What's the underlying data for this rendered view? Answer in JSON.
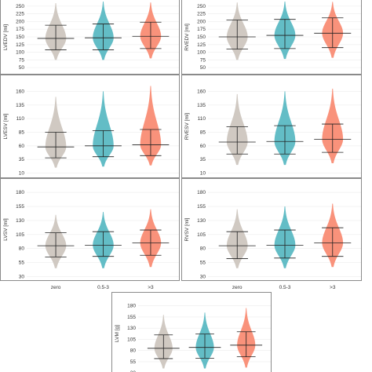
{
  "chart_data": [
    {
      "type": "violin",
      "ylabel": "LVEDV [ml]",
      "yticks": [
        50,
        75,
        100,
        125,
        150,
        175,
        200,
        225,
        250
      ],
      "ylim": [
        35,
        265
      ],
      "categories": [
        "zero",
        "0.5-3",
        ">3"
      ],
      "colors": [
        "#cdc6bf",
        "#5bb9c3",
        "#f98c74"
      ],
      "groups": [
        {
          "category": "zero",
          "median": 145,
          "q1": 108,
          "q3": 188,
          "min": 75,
          "max": 260
        },
        {
          "category": "0.5-3",
          "median": 147,
          "q1": 108,
          "q3": 192,
          "min": 75,
          "max": 265
        },
        {
          "category": ">3",
          "median": 152,
          "q1": 112,
          "q3": 198,
          "min": 80,
          "max": 262
        }
      ],
      "show_xticks": false
    },
    {
      "type": "violin",
      "ylabel": "RVEDV [ml]",
      "yticks": [
        50,
        75,
        100,
        125,
        150,
        175,
        200,
        225,
        250
      ],
      "ylim": [
        35,
        265
      ],
      "categories": [
        "zero",
        "0.5-3",
        ">3"
      ],
      "colors": [
        "#cdc6bf",
        "#5bb9c3",
        "#f98c74"
      ],
      "groups": [
        {
          "category": "zero",
          "median": 150,
          "q1": 110,
          "q3": 205,
          "min": 75,
          "max": 262
        },
        {
          "category": "0.5-3",
          "median": 155,
          "q1": 112,
          "q3": 207,
          "min": 78,
          "max": 265
        },
        {
          "category": ">3",
          "median": 162,
          "q1": 115,
          "q3": 212,
          "min": 82,
          "max": 264
        }
      ],
      "show_xticks": false
    },
    {
      "type": "violin",
      "ylabel": "LVESV [ml]",
      "yticks": [
        10,
        35,
        60,
        85,
        110,
        135,
        160
      ],
      "ylim": [
        5,
        175
      ],
      "categories": [
        "zero",
        "0.5-3",
        ">3"
      ],
      "colors": [
        "#cdc6bf",
        "#5bb9c3",
        "#f98c74"
      ],
      "groups": [
        {
          "category": "zero",
          "median": 58,
          "q1": 38,
          "q3": 85,
          "min": 20,
          "max": 150
        },
        {
          "category": "0.5-3",
          "median": 60,
          "q1": 40,
          "q3": 88,
          "min": 22,
          "max": 160
        },
        {
          "category": ">3",
          "median": 62,
          "q1": 42,
          "q3": 90,
          "min": 24,
          "max": 170
        }
      ],
      "show_xticks": false
    },
    {
      "type": "violin",
      "ylabel": "RVESV [ml]",
      "yticks": [
        10,
        35,
        60,
        85,
        110,
        135,
        160
      ],
      "ylim": [
        5,
        175
      ],
      "categories": [
        "zero",
        "0.5-3",
        ">3"
      ],
      "colors": [
        "#cdc6bf",
        "#5bb9c3",
        "#f98c74"
      ],
      "groups": [
        {
          "category": "zero",
          "median": 67,
          "q1": 45,
          "q3": 95,
          "min": 25,
          "max": 155
        },
        {
          "category": "0.5-3",
          "median": 68,
          "q1": 45,
          "q3": 97,
          "min": 25,
          "max": 160
        },
        {
          "category": ">3",
          "median": 72,
          "q1": 48,
          "q3": 100,
          "min": 28,
          "max": 165
        }
      ],
      "show_xticks": false
    },
    {
      "type": "violin",
      "ylabel": "LVSV [ml]",
      "yticks": [
        30,
        55,
        80,
        105,
        130,
        155,
        180
      ],
      "ylim": [
        25,
        190
      ],
      "categories": [
        "zero",
        "0.5-3",
        ">3"
      ],
      "colors": [
        "#cdc6bf",
        "#5bb9c3",
        "#f98c74"
      ],
      "groups": [
        {
          "category": "zero",
          "median": 85,
          "q1": 65,
          "q3": 108,
          "min": 45,
          "max": 140
        },
        {
          "category": "0.5-3",
          "median": 86,
          "q1": 66,
          "q3": 110,
          "min": 45,
          "max": 145
        },
        {
          "category": ">3",
          "median": 90,
          "q1": 68,
          "q3": 113,
          "min": 47,
          "max": 150
        }
      ],
      "show_xticks": true
    },
    {
      "type": "violin",
      "ylabel": "RVSV [ml]",
      "yticks": [
        30,
        55,
        80,
        105,
        130,
        155,
        180
      ],
      "ylim": [
        25,
        190
      ],
      "categories": [
        "zero",
        "0.5-3",
        ">3"
      ],
      "colors": [
        "#cdc6bf",
        "#5bb9c3",
        "#f98c74"
      ],
      "groups": [
        {
          "category": "zero",
          "median": 85,
          "q1": 62,
          "q3": 110,
          "min": 45,
          "max": 150
        },
        {
          "category": "0.5-3",
          "median": 86,
          "q1": 63,
          "q3": 113,
          "min": 45,
          "max": 155
        },
        {
          "category": ">3",
          "median": 90,
          "q1": 66,
          "q3": 117,
          "min": 47,
          "max": 160
        }
      ],
      "show_xticks": true
    },
    {
      "type": "violin",
      "ylabel": "LVM [g]",
      "yticks": [
        30,
        55,
        80,
        105,
        130,
        155,
        180
      ],
      "ylim": [
        25,
        190
      ],
      "categories": [
        "zero",
        "0.5-3",
        ">3"
      ],
      "colors": [
        "#cdc6bf",
        "#5bb9c3",
        "#f98c74"
      ],
      "groups": [
        {
          "category": "zero",
          "median": 85,
          "q1": 62,
          "q3": 115,
          "min": 40,
          "max": 160
        },
        {
          "category": "0.5-3",
          "median": 87,
          "q1": 63,
          "q3": 117,
          "min": 40,
          "max": 165
        },
        {
          "category": ">3",
          "median": 92,
          "q1": 66,
          "q3": 122,
          "min": 42,
          "max": 175
        }
      ],
      "show_xticks": false
    }
  ]
}
